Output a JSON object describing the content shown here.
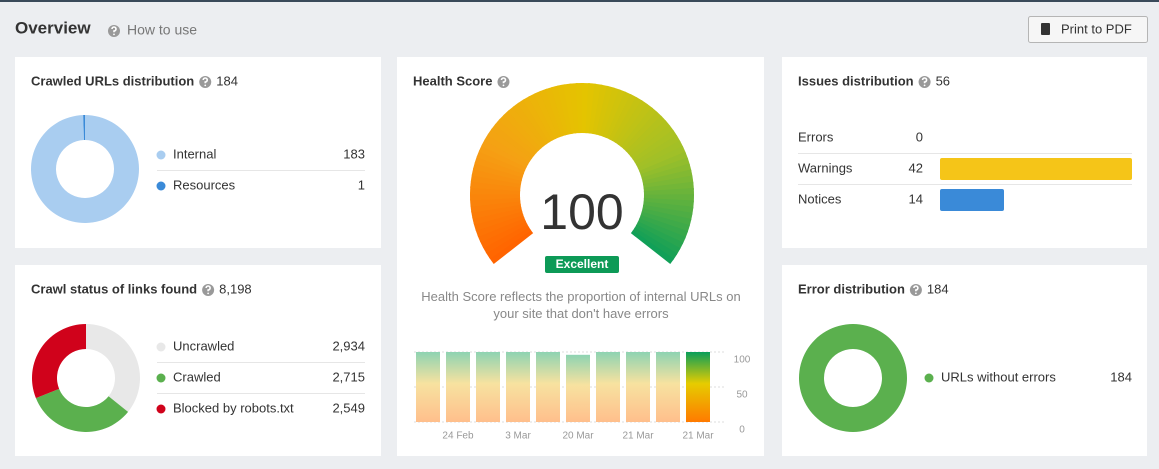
{
  "header": {
    "title": "Overview",
    "help": "How to use",
    "print_button": "Print to PDF"
  },
  "crawled_urls": {
    "title": "Crawled URLs distribution",
    "total": 184,
    "items": [
      {
        "label": "Internal",
        "value": 183,
        "color": "#a9cdf0"
      },
      {
        "label": "Resources",
        "value": 1,
        "color": "#3a8ad8"
      }
    ]
  },
  "crawl_status": {
    "title": "Crawl status of links found",
    "total": 8198,
    "total_label": "8,198",
    "items": [
      {
        "label": "Uncrawled",
        "value": 2934,
        "value_label": "2,934",
        "color": "#e8e8e8"
      },
      {
        "label": "Crawled",
        "value": 2715,
        "value_label": "2,715",
        "color": "#5bb04e"
      },
      {
        "label": "Blocked by robots.txt",
        "value": 2549,
        "value_label": "2,549",
        "color": "#d0021b"
      }
    ]
  },
  "health": {
    "title": "Health Score",
    "score": 100,
    "score_max": 100,
    "rating": "Excellent",
    "description": "Health Score reflects the proportion of internal URLs on your site that don't have errors",
    "history": {
      "labels": [
        null,
        "24 Feb",
        null,
        "3 Mar",
        null,
        "20 Mar",
        null,
        "21 Mar",
        null,
        "21 Mar"
      ],
      "values": [
        100,
        100,
        100,
        100,
        100,
        96,
        100,
        100,
        100,
        100
      ],
      "ylim": [
        0,
        100
      ],
      "yticks": [
        0,
        50,
        100
      ]
    }
  },
  "issues": {
    "title": "Issues distribution",
    "total": 56,
    "items": [
      {
        "label": "Errors",
        "value": 0,
        "color": "#d0021b"
      },
      {
        "label": "Warnings",
        "value": 42,
        "color": "#f5c518"
      },
      {
        "label": "Notices",
        "value": 14,
        "color": "#3a8ad8"
      }
    ]
  },
  "error_dist": {
    "title": "Error distribution",
    "total": 184,
    "items": [
      {
        "label": "URLs without errors",
        "value": 184,
        "color": "#5bb04e"
      }
    ]
  }
}
